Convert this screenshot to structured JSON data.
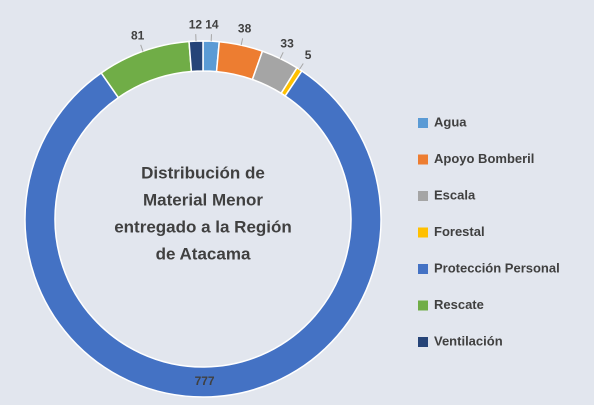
{
  "chart_data": {
    "type": "donut",
    "title": [
      "Distribución de",
      "Material Menor",
      "entregado a la Región",
      "de Atacama"
    ],
    "categories": [
      "Agua",
      "Apoyo Bomberil",
      "Escala",
      "Forestal",
      "Protección Personal",
      "Rescate",
      "Ventilación"
    ],
    "values": [
      14,
      38,
      33,
      5,
      777,
      81,
      12
    ],
    "colors": [
      "#5b9bd5",
      "#ed7d31",
      "#a5a5a5",
      "#ffc000",
      "#4472c4",
      "#70ad47",
      "#264478"
    ],
    "legend": "right"
  }
}
